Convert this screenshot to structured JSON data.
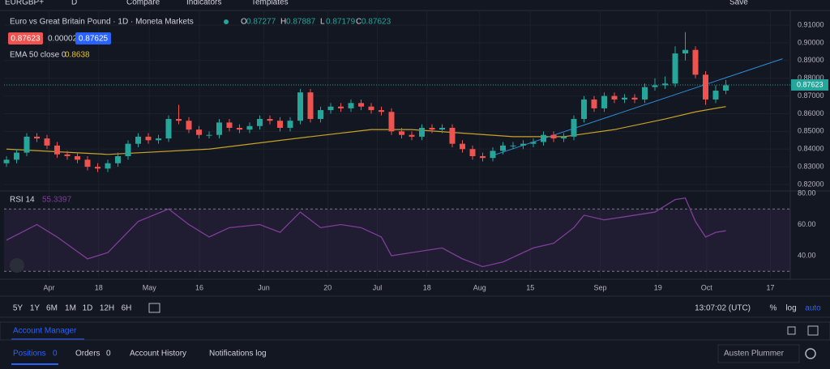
{
  "toolbar": {
    "symbol": "EURGBP+",
    "interval": "D",
    "items": [
      "Compare",
      "Indicators",
      "Templates",
      "Save"
    ]
  },
  "legend": {
    "title": "Euro vs Great Britain Pound · 1D · Moneta Markets",
    "ohlc": [
      {
        "label": "O",
        "value": 0.87277
      },
      {
        "label": "H",
        "value": 0.87887
      },
      {
        "label": "L",
        "value": 0.87179
      },
      {
        "label": "C",
        "value": 0.87623
      }
    ],
    "bid": 0.87623,
    "spread": 2e-05,
    "ask": 0.87625,
    "ema_label": "EMA 50 close 0",
    "ema_value": 0.8638
  },
  "chart_data": {
    "type": "candlestick",
    "up_color": "#26a69a",
    "down_color": "#ef5350",
    "ylim": [
      0.8168,
      0.9187
    ],
    "yticks": [
      {
        "value": 0.91,
        "label": "0.91000"
      },
      {
        "value": 0.9,
        "label": "0.90000"
      },
      {
        "value": 0.89,
        "label": "0.89000"
      },
      {
        "value": 0.88,
        "label": "0.88000"
      },
      {
        "value": 0.87,
        "label": "0.87000"
      },
      {
        "value": 0.86,
        "label": "0.86000"
      },
      {
        "value": 0.85,
        "label": "0.85000"
      },
      {
        "value": 0.84,
        "label": "0.84000"
      },
      {
        "value": 0.83,
        "label": "0.83000"
      },
      {
        "value": 0.82,
        "label": "0.82000"
      }
    ],
    "xlim": [
      -0.24,
      77.36
    ],
    "xticks": [
      {
        "value": 4.2,
        "label": "Apr"
      },
      {
        "value": 9.1,
        "label": "18"
      },
      {
        "value": 14.1,
        "label": "May"
      },
      {
        "value": 19.04,
        "label": "16"
      },
      {
        "value": 25.4,
        "label": "Jun"
      },
      {
        "value": 31.7,
        "label": "20"
      },
      {
        "value": 36.6,
        "label": "Jul"
      },
      {
        "value": 41.5,
        "label": "18"
      },
      {
        "value": 46.7,
        "label": "Aug"
      },
      {
        "value": 51.7,
        "label": "15"
      },
      {
        "value": 58.6,
        "label": "Sep"
      },
      {
        "value": 64.3,
        "label": "19"
      },
      {
        "value": 69.1,
        "label": "Oct"
      },
      {
        "value": 75.4,
        "label": "17"
      }
    ],
    "candles": [
      [
        0.832,
        0.836,
        0.83,
        0.834
      ],
      [
        0.834,
        0.84,
        0.832,
        0.838
      ],
      [
        0.838,
        0.849,
        0.836,
        0.847
      ],
      [
        0.847,
        0.849,
        0.844,
        0.846
      ],
      [
        0.846,
        0.848,
        0.84,
        0.842
      ],
      [
        0.842,
        0.844,
        0.835,
        0.837
      ],
      [
        0.837,
        0.839,
        0.834,
        0.836
      ],
      [
        0.836,
        0.838,
        0.832,
        0.834
      ],
      [
        0.834,
        0.836,
        0.828,
        0.83
      ],
      [
        0.83,
        0.832,
        0.827,
        0.829
      ],
      [
        0.829,
        0.834,
        0.827,
        0.832
      ],
      [
        0.832,
        0.838,
        0.83,
        0.836
      ],
      [
        0.836,
        0.845,
        0.834,
        0.843
      ],
      [
        0.843,
        0.849,
        0.841,
        0.847
      ],
      [
        0.847,
        0.849,
        0.843,
        0.845
      ],
      [
        0.845,
        0.848,
        0.843,
        0.846
      ],
      [
        0.846,
        0.859,
        0.844,
        0.857
      ],
      [
        0.857,
        0.865,
        0.854,
        0.856
      ],
      [
        0.856,
        0.858,
        0.849,
        0.851
      ],
      [
        0.851,
        0.853,
        0.846,
        0.848
      ],
      [
        0.848,
        0.85,
        0.846,
        0.848
      ],
      [
        0.848,
        0.857,
        0.846,
        0.855
      ],
      [
        0.855,
        0.857,
        0.85,
        0.852
      ],
      [
        0.852,
        0.854,
        0.849,
        0.851
      ],
      [
        0.851,
        0.855,
        0.849,
        0.853
      ],
      [
        0.853,
        0.859,
        0.851,
        0.857
      ],
      [
        0.857,
        0.859,
        0.854,
        0.856
      ],
      [
        0.856,
        0.858,
        0.85,
        0.852
      ],
      [
        0.852,
        0.858,
        0.85,
        0.856
      ],
      [
        0.856,
        0.874,
        0.854,
        0.872
      ],
      [
        0.872,
        0.874,
        0.855,
        0.857
      ],
      [
        0.857,
        0.864,
        0.855,
        0.862
      ],
      [
        0.862,
        0.866,
        0.86,
        0.864
      ],
      [
        0.864,
        0.866,
        0.861,
        0.863
      ],
      [
        0.863,
        0.868,
        0.861,
        0.866
      ],
      [
        0.866,
        0.868,
        0.862,
        0.864
      ],
      [
        0.864,
        0.866,
        0.86,
        0.862
      ],
      [
        0.862,
        0.864,
        0.859,
        0.861
      ],
      [
        0.861,
        0.863,
        0.848,
        0.85
      ],
      [
        0.85,
        0.852,
        0.846,
        0.848
      ],
      [
        0.848,
        0.85,
        0.845,
        0.847
      ],
      [
        0.847,
        0.854,
        0.845,
        0.852
      ],
      [
        0.852,
        0.854,
        0.849,
        0.851
      ],
      [
        0.851,
        0.854,
        0.849,
        0.852
      ],
      [
        0.852,
        0.854,
        0.841,
        0.843
      ],
      [
        0.843,
        0.845,
        0.838,
        0.84
      ],
      [
        0.84,
        0.842,
        0.834,
        0.836
      ],
      [
        0.836,
        0.838,
        0.833,
        0.835
      ],
      [
        0.835,
        0.841,
        0.833,
        0.839
      ],
      [
        0.839,
        0.844,
        0.837,
        0.842
      ],
      [
        0.842,
        0.844,
        0.84,
        0.842
      ],
      [
        0.842,
        0.845,
        0.84,
        0.843
      ],
      [
        0.843,
        0.846,
        0.841,
        0.844
      ],
      [
        0.844,
        0.85,
        0.842,
        0.848
      ],
      [
        0.848,
        0.85,
        0.844,
        0.846
      ],
      [
        0.846,
        0.849,
        0.844,
        0.847
      ],
      [
        0.847,
        0.859,
        0.845,
        0.857
      ],
      [
        0.857,
        0.87,
        0.855,
        0.868
      ],
      [
        0.868,
        0.87,
        0.861,
        0.863
      ],
      [
        0.863,
        0.872,
        0.861,
        0.87
      ],
      [
        0.87,
        0.872,
        0.866,
        0.868
      ],
      [
        0.868,
        0.871,
        0.866,
        0.869
      ],
      [
        0.869,
        0.871,
        0.866,
        0.868
      ],
      [
        0.868,
        0.877,
        0.866,
        0.875
      ],
      [
        0.875,
        0.88,
        0.873,
        0.876
      ],
      [
        0.876,
        0.881,
        0.874,
        0.877
      ],
      [
        0.877,
        0.898,
        0.875,
        0.894
      ],
      [
        0.894,
        0.906,
        0.89,
        0.896
      ],
      [
        0.896,
        0.898,
        0.88,
        0.882
      ],
      [
        0.882,
        0.884,
        0.865,
        0.868
      ],
      [
        0.868,
        0.876,
        0.866,
        0.873
      ],
      [
        0.873,
        0.879,
        0.871,
        0.876
      ]
    ],
    "ema": {
      "color": "#c9a227",
      "x": [
        0,
        10,
        20,
        30,
        36,
        40,
        45,
        50,
        55,
        60,
        65,
        68,
        71
      ],
      "values": [
        0.84,
        0.837,
        0.84,
        0.847,
        0.851,
        0.851,
        0.849,
        0.847,
        0.847,
        0.851,
        0.857,
        0.861,
        0.864
      ]
    },
    "trendline": {
      "color": "#2e8bd6",
      "x": [
        47.8,
        76.6
      ],
      "values": [
        0.836,
        0.891
      ]
    },
    "last_price": 0.87623
  },
  "rsi": {
    "label": "RSI 14",
    "value": 55.3397,
    "color": "#7e3f98",
    "ylim": [
      26.5,
      80.5
    ],
    "bands": [
      70,
      30
    ],
    "yticks": [
      {
        "value": 80,
        "label": "80.00"
      },
      {
        "value": 60,
        "label": "60.00"
      },
      {
        "value": 40,
        "label": "40.00"
      }
    ],
    "x": [
      0,
      3,
      5,
      8,
      10,
      13,
      16,
      18,
      20,
      22,
      25,
      27,
      29,
      31,
      33,
      35,
      37,
      38,
      40,
      43,
      45,
      47,
      49,
      52,
      54,
      56,
      57,
      59,
      62,
      64,
      66,
      67,
      68,
      69,
      70,
      71
    ],
    "values": [
      50,
      60,
      52,
      38,
      42,
      62,
      70,
      60,
      52,
      58,
      60,
      55,
      68,
      58,
      60,
      58,
      52,
      40,
      42,
      45,
      38,
      33,
      36,
      45,
      48,
      58,
      66,
      63,
      66,
      68,
      76,
      77,
      62,
      52,
      55,
      56
    ]
  },
  "bottom_toolbar": {
    "ranges": [
      "5Y",
      "1Y",
      "6M",
      "1M",
      "1D",
      "12H",
      "6H"
    ],
    "clock": "13:07:02 (UTC)",
    "options": [
      "%",
      "log",
      "auto"
    ]
  },
  "account_panel": {
    "title": "Account Manager",
    "tabs": [
      {
        "label": "Positions",
        "count": 0
      },
      {
        "label": "Orders",
        "count": 0
      },
      {
        "label": "Account History"
      },
      {
        "label": "Notifications log"
      }
    ],
    "user": "Austen Plummer"
  }
}
